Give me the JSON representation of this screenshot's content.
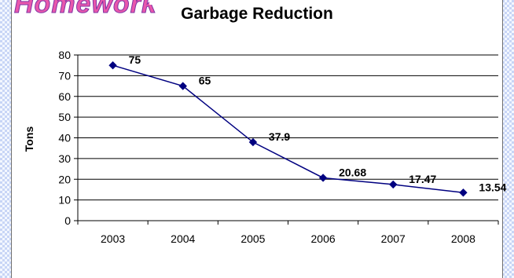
{
  "banner_text": "Homework",
  "chart_data": {
    "type": "line",
    "title": "Garbage Reduction",
    "xlabel": "",
    "ylabel": "Tons",
    "categories": [
      "2003",
      "2004",
      "2005",
      "2006",
      "2007",
      "2008"
    ],
    "series": [
      {
        "values": [
          75,
          65,
          37.9,
          20.68,
          17.47,
          13.54
        ]
      }
    ],
    "data_labels": [
      "75",
      "65",
      "37.9",
      "20.68",
      "17.47",
      "13.54"
    ],
    "y_ticks": [
      "0",
      "10",
      "20",
      "30",
      "40",
      "50",
      "60",
      "70",
      "80"
    ],
    "ylim": [
      0,
      80
    ],
    "grid": true,
    "legend": "none",
    "colors": {
      "line": "#000080",
      "marker": "#000080",
      "grid": "#000000"
    }
  }
}
